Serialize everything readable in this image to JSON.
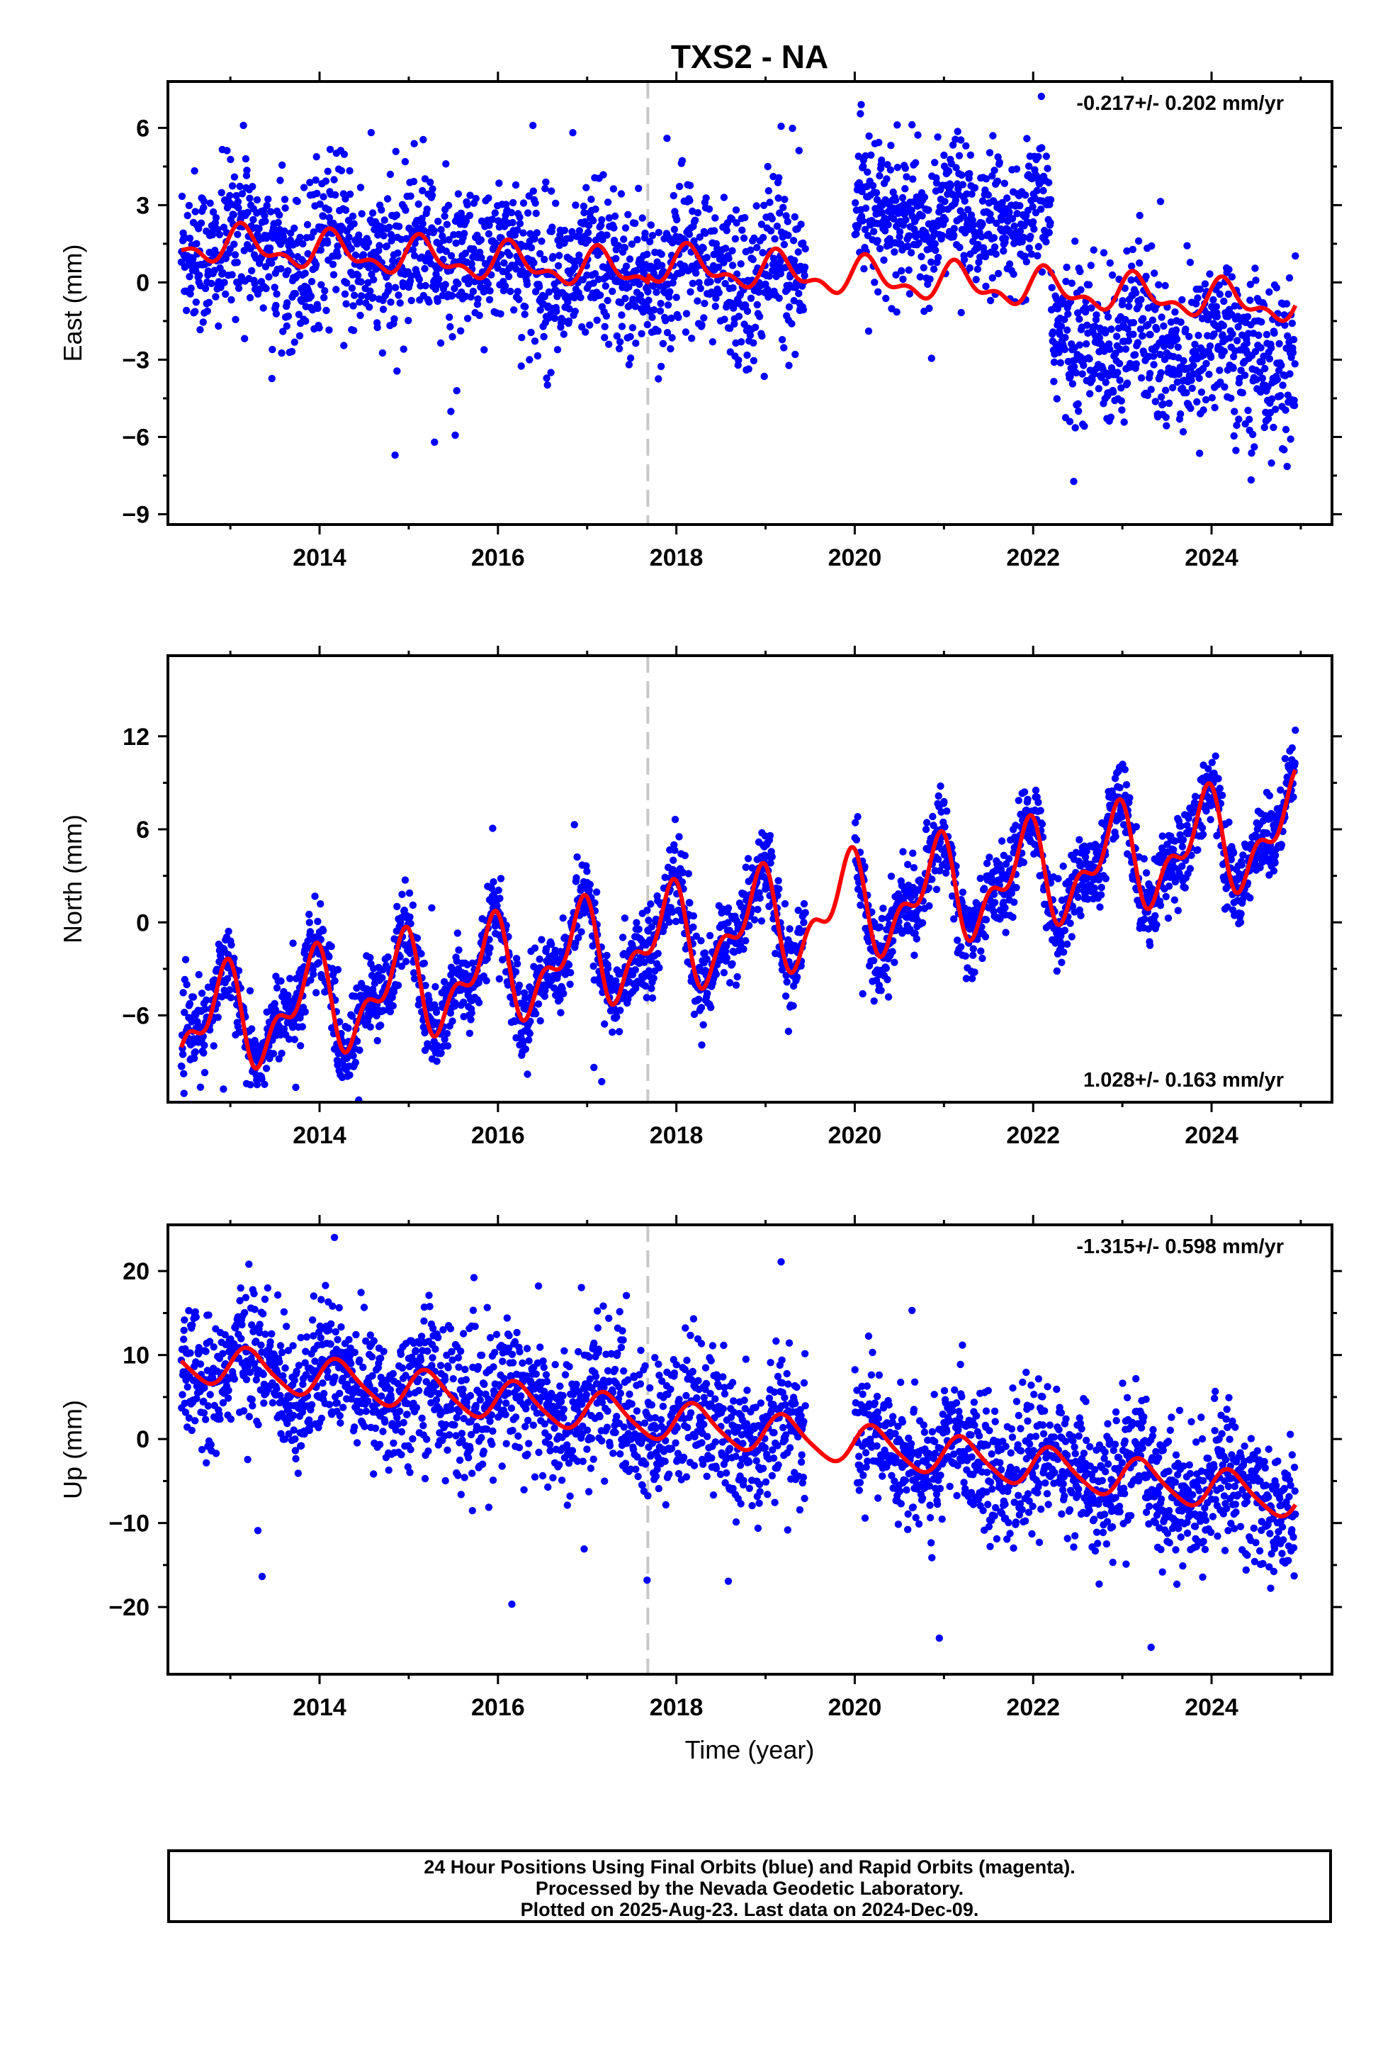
{
  "title": "TXS2 - NA",
  "xlabel": "Time (year)",
  "x_ticks": [
    "2014",
    "2016",
    "2018",
    "2020",
    "2022",
    "2024"
  ],
  "colors": {
    "points": "#0000ff",
    "model": "#ff0000",
    "break_line": "#c8c8c8",
    "frame": "#000000"
  },
  "caption": {
    "line1": "24 Hour Positions Using Final Orbits (blue) and Rapid Orbits (magenta).",
    "line2": "Processed by the Nevada Geodetic Laboratory.",
    "line3": "Plotted on 2025-Aug-23. Last data on 2024-Dec-09."
  },
  "chart_data": [
    {
      "type": "scatter",
      "ylabel": "East (mm)",
      "rate": "-0.217+/- 0.202 mm/yr",
      "rate_position": "top-right",
      "xlim": [
        2012.3,
        2025.35
      ],
      "ylim": [
        -9.4,
        7.8
      ],
      "yticks": [
        6,
        3,
        0,
        -3,
        -6,
        -9
      ],
      "ytick_labels": [
        "6",
        "3",
        "0",
        "−3",
        "−6",
        "−9"
      ],
      "equipment_change": 2017.68,
      "data_gap": [
        2019.45,
        2020.0
      ],
      "trend": {
        "mean": 0,
        "slope": -0.217,
        "ref_year": 2018.6
      },
      "seasonal": {
        "annual_amp": 0.6,
        "annual_phase": 0.6,
        "semiannual_amp": 0.35,
        "semiannual_phase": 0.3
      },
      "offset_segments": [
        {
          "from": 2012.45,
          "to": 2017.68,
          "offset": 0.2
        },
        {
          "from": 2017.68,
          "to": 2020.0,
          "offset": 0.5
        },
        {
          "from": 2020.0,
          "to": 2025.0,
          "offset": 0.5
        }
      ],
      "residual_scatter": [
        {
          "from": 2012.45,
          "to": 2020.0,
          "std": 1.5
        },
        {
          "from": 2020.0,
          "to": 2022.2,
          "std": 1.3,
          "shift": 2.5
        },
        {
          "from": 2022.2,
          "to": 2025.0,
          "std": 1.6,
          "shift": -1.8
        }
      ]
    },
    {
      "type": "scatter",
      "ylabel": "North (mm)",
      "rate": "1.028+/- 0.163 mm/yr",
      "rate_position": "bottom-right",
      "xlim": [
        2012.3,
        2025.35
      ],
      "ylim": [
        -11.6,
        17.2
      ],
      "yticks": [
        12,
        6,
        0,
        -6
      ],
      "ytick_labels": [
        "12",
        "6",
        "0",
        "−6"
      ],
      "equipment_change": 2017.68,
      "data_gap": [
        2019.45,
        2020.0
      ],
      "trend": {
        "mean": -0.5,
        "slope": 1.028,
        "ref_year": 2018.6
      },
      "seasonal": {
        "annual_amp": 2.7,
        "annual_phase": 2.2,
        "semiannual_amp": 1.6,
        "semiannual_phase": 1.6
      },
      "offset_segments": [],
      "residual_scatter": [
        {
          "from": 2012.45,
          "to": 2025.0,
          "std": 1.3
        }
      ]
    },
    {
      "type": "scatter",
      "ylabel": "Up (mm)",
      "rate": "-1.315+/- 0.598 mm/yr",
      "rate_position": "top-right",
      "xlim": [
        2012.3,
        2025.35
      ],
      "ylim": [
        -28,
        25.5
      ],
      "yticks": [
        20,
        10,
        0,
        -10,
        -20
      ],
      "ytick_labels": [
        "20",
        "10",
        "0",
        "−10",
        "−20"
      ],
      "equipment_change": 2017.68,
      "data_gap": [
        2019.45,
        2020.0
      ],
      "trend": {
        "mean": 1.2,
        "slope": -1.315,
        "ref_year": 2018.6
      },
      "seasonal": {
        "annual_amp": 2.3,
        "annual_phase": 0.2,
        "semiannual_amp": 0.4,
        "semiannual_phase": 0.0
      },
      "offset_segments": [],
      "residual_scatter": [
        {
          "from": 2012.45,
          "to": 2015.1,
          "std": 4.0
        },
        {
          "from": 2015.1,
          "to": 2019.45,
          "std": 4.3
        },
        {
          "from": 2020.0,
          "to": 2025.0,
          "std": 3.8
        }
      ]
    }
  ]
}
